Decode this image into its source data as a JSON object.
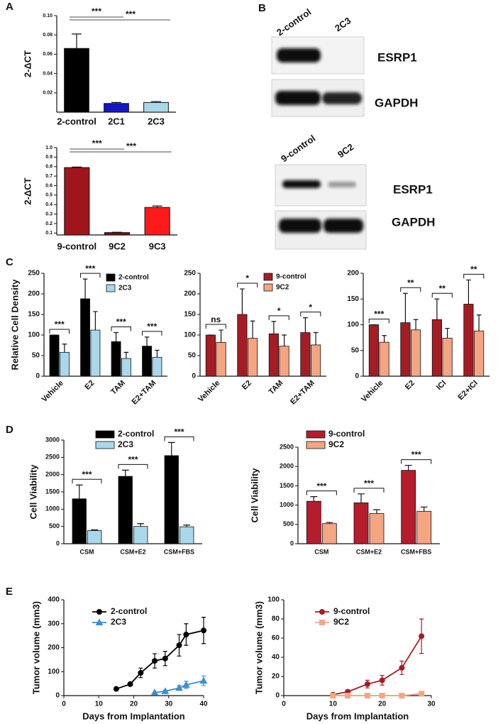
{
  "panel_labels": [
    "A",
    "B",
    "C",
    "D",
    "E"
  ],
  "blots": [
    {
      "lanes": [
        "2-control",
        "2C3"
      ],
      "rows": [
        "ESRP1",
        "GAPDH"
      ]
    },
    {
      "lanes": [
        "9-control",
        "9C2"
      ],
      "rows": [
        "ESRP1",
        "GAPDH"
      ]
    }
  ],
  "chart_data": [
    {
      "type": "bar",
      "y_label": "2-ΔCT",
      "categories": [
        "2-control",
        "2C1",
        "2C3"
      ],
      "values": [
        0.066,
        0.009,
        0.01
      ],
      "errors": [
        0.015,
        0.001,
        0.001
      ],
      "colors": [
        "#000000",
        "#1414c8",
        "#a9d8ec"
      ],
      "ylim": [
        0,
        0.1
      ],
      "yticks": [
        0.02,
        0.04,
        0.06,
        0.08,
        {
          "value": 0.1,
          "label": "0.10"
        }
      ],
      "comparisons": [
        {
          "from": 0,
          "to": 1,
          "label": "***"
        },
        {
          "from": 0,
          "to": 2,
          "label": "***"
        }
      ]
    },
    {
      "type": "bar",
      "y_label": "2-ΔCT",
      "categories": [
        "9-control",
        "9C2",
        "9C3"
      ],
      "values": [
        0.79,
        0.105,
        0.37
      ],
      "errors": [
        0.005,
        0.003,
        0.015
      ],
      "colors": [
        "#a0141c",
        "#8a0a10",
        "#ff1a1a"
      ],
      "ylim": [
        0.08,
        1.0
      ],
      "yticks": [
        0.1,
        0.2,
        0.3,
        0.4,
        0.5,
        0.6,
        0.7,
        0.8,
        0.9,
        {
          "value": 1.0,
          "label": "1.0"
        }
      ],
      "comparisons": [
        {
          "from": 0,
          "to": 1,
          "label": "***"
        },
        {
          "from": 0,
          "to": 2,
          "label": "***"
        }
      ]
    },
    {
      "type": "bar",
      "y_label": "Relative Cell Density",
      "categories": [
        "Vehicle",
        "E2",
        "TAM",
        "E2+TAM"
      ],
      "series": [
        {
          "name": "2-control",
          "color": "#000000",
          "values": [
            100,
            188,
            84,
            73
          ],
          "errors": [
            0,
            48,
            22,
            22
          ]
        },
        {
          "name": "2C3",
          "color": "#a9d8ec",
          "values": [
            58,
            112,
            43,
            46
          ],
          "errors": [
            20,
            45,
            15,
            17
          ]
        }
      ],
      "ylim": [
        0,
        250
      ],
      "yticks": [
        0,
        50,
        100,
        150,
        200,
        250
      ],
      "significance": [
        "***",
        "***",
        "***",
        "***"
      ]
    },
    {
      "type": "bar",
      "categories": [
        "Vehicle",
        "E2",
        "TAM",
        "E2+TAM"
      ],
      "series": [
        {
          "name": "9-control",
          "color": "#a51c24",
          "values": [
            100,
            150,
            103,
            106
          ],
          "errors": [
            0,
            62,
            30,
            36
          ]
        },
        {
          "name": "9C2",
          "color": "#f4a582",
          "values": [
            82,
            92,
            73,
            76
          ],
          "errors": [
            30,
            42,
            27,
            30
          ]
        }
      ],
      "ylim": [
        0,
        250
      ],
      "yticks": [
        0,
        50,
        100,
        150,
        200,
        250
      ],
      "significance": [
        "ns",
        "*",
        "*",
        "*"
      ]
    },
    {
      "type": "bar",
      "categories": [
        "Vehicle",
        "E2",
        "ICI",
        "E2+ICI"
      ],
      "series": [
        {
          "color": "#a51c24",
          "values": [
            100,
            104,
            110,
            140
          ],
          "errors": [
            0,
            57,
            40,
            47
          ]
        },
        {
          "color": "#f4a582",
          "values": [
            66,
            90,
            74,
            88
          ],
          "errors": [
            13,
            20,
            19,
            31
          ]
        }
      ],
      "ylim": [
        0,
        200
      ],
      "yticks": [
        0,
        50,
        100,
        150,
        200
      ],
      "significance": [
        "***",
        "**",
        "**",
        "**"
      ]
    },
    {
      "type": "bar",
      "y_label": "Cell Viability",
      "categories": [
        "CSM",
        "CSM+E2",
        "CSM+FBS"
      ],
      "series": [
        {
          "name": "2-control",
          "color": "#000000",
          "values": [
            1300,
            1950,
            2550
          ],
          "errors": [
            400,
            180,
            380
          ]
        },
        {
          "name": "2C3",
          "color": "#a9d8ec",
          "values": [
            380,
            500,
            490
          ],
          "errors": [
            20,
            80,
            50
          ]
        }
      ],
      "ylim": [
        0,
        3000
      ],
      "yticks": [
        0,
        500,
        1000,
        1500,
        2000,
        2500,
        3000
      ],
      "significance": [
        "***",
        "***",
        "***"
      ]
    },
    {
      "type": "bar",
      "y_label": "Cell Viability",
      "categories": [
        "CSM",
        "CSM+E2",
        "CSM+FBS"
      ],
      "series": [
        {
          "name": "9-control",
          "color": "#b51c2c",
          "values": [
            1100,
            1060,
            1900
          ],
          "errors": [
            120,
            230,
            130
          ]
        },
        {
          "name": "9C2",
          "color": "#f4a582",
          "values": [
            520,
            780,
            840
          ],
          "errors": [
            30,
            100,
            110
          ]
        }
      ],
      "ylim": [
        0,
        2500
      ],
      "yticks": [
        0,
        500,
        1000,
        1500,
        2000,
        2500
      ],
      "significance": [
        "***",
        "***",
        "***"
      ]
    },
    {
      "type": "line",
      "x_label": "Days from Implantation",
      "y_label": "Tumor volume (mm3)",
      "series": [
        {
          "name": "2-control",
          "color": "#000000",
          "marker": "circle",
          "x": [
            15,
            19,
            22,
            26,
            29,
            33,
            35,
            40
          ],
          "values": [
            28,
            48,
            95,
            145,
            155,
            210,
            255,
            272
          ],
          "errors": [
            0,
            8,
            20,
            30,
            30,
            45,
            45,
            55
          ]
        },
        {
          "name": "2C3",
          "color": "#3a8fd0",
          "marker": "triangle",
          "x": [
            26,
            29,
            33,
            35,
            40
          ],
          "values": [
            13,
            18,
            32,
            45,
            62
          ],
          "errors": [
            0,
            5,
            10,
            15,
            20
          ]
        }
      ],
      "xlim": [
        0,
        40
      ],
      "xticks": [
        0,
        10,
        20,
        30,
        40
      ],
      "ylim": [
        0,
        400
      ],
      "yticks": [
        0,
        100,
        200,
        300,
        400
      ]
    },
    {
      "type": "line",
      "x_label": "Days from Implantation",
      "y_label": "Tumor volume (mm3)",
      "series": [
        {
          "name": "9-control",
          "color": "#a51c24",
          "marker": "circle",
          "x": [
            10,
            13,
            17,
            20,
            24,
            28
          ],
          "values": [
            1,
            4,
            12,
            16,
            29,
            62
          ],
          "errors": [
            2,
            2,
            4,
            5,
            7,
            18
          ]
        },
        {
          "name": "9C2",
          "color": "#f4a582",
          "marker": "square",
          "x": [
            10,
            13,
            17,
            20,
            24,
            28
          ],
          "values": [
            0,
            0,
            0,
            0,
            0,
            2
          ],
          "errors": [
            0,
            0,
            0,
            0,
            0,
            1
          ]
        }
      ],
      "xlim": [
        0,
        30
      ],
      "xticks": [
        0,
        10,
        20,
        30
      ],
      "ylim": [
        0,
        100
      ],
      "yticks": [
        0,
        20,
        40,
        60,
        80,
        100
      ]
    }
  ]
}
